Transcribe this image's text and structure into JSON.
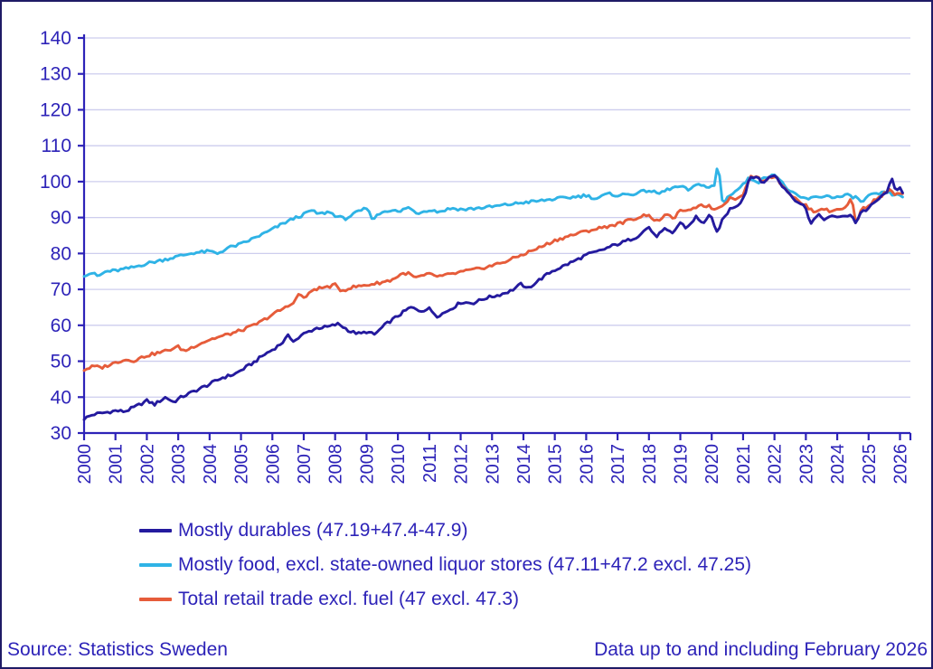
{
  "colors": {
    "text": "#2d23b8",
    "axis": "#2d23b8",
    "grid": "#cdcdee",
    "frame": "#1f1b66",
    "background": "#ffffff",
    "series_durables": "#241a9e",
    "series_food": "#2fb3e6",
    "series_retail": "#e65c3a"
  },
  "footer": {
    "source": "Source: Statistics Sweden",
    "coverage": "Data up to and including February 2026"
  },
  "chart_data": {
    "type": "line",
    "title": "",
    "xlabel": "",
    "ylabel": "",
    "x_unit": "monthly index, Jan 2000 - Feb 2026",
    "ylim": [
      30,
      140
    ],
    "y_ticks": [
      30,
      40,
      50,
      60,
      70,
      80,
      90,
      100,
      110,
      120,
      130,
      140
    ],
    "x_ticks": [
      2000,
      2001,
      2002,
      2003,
      2004,
      2005,
      2006,
      2007,
      2008,
      2009,
      2010,
      2011,
      2012,
      2013,
      2014,
      2015,
      2016,
      2017,
      2018,
      2019,
      2020,
      2021,
      2022,
      2023,
      2024,
      2025,
      2026
    ],
    "xlim": [
      2000,
      2026.33
    ],
    "grid": "horizontal",
    "legend_position": "bottom-left",
    "series": [
      {
        "name": "Mostly durables (47.19+47.4-47.9)",
        "color": "#241a9e",
        "points": [
          [
            2000.0,
            34.0
          ],
          [
            2000.3,
            35.2
          ],
          [
            2000.6,
            35.6
          ],
          [
            2001.0,
            36.2
          ],
          [
            2001.3,
            36.0
          ],
          [
            2001.7,
            37.6
          ],
          [
            2002.0,
            39.0
          ],
          [
            2002.25,
            38.0
          ],
          [
            2002.6,
            40.0
          ],
          [
            2002.85,
            38.6
          ],
          [
            2003.1,
            40.0
          ],
          [
            2003.5,
            41.6
          ],
          [
            2004.0,
            43.6
          ],
          [
            2004.4,
            45.4
          ],
          [
            2004.8,
            46.4
          ],
          [
            2005.1,
            48.0
          ],
          [
            2005.4,
            49.6
          ],
          [
            2005.7,
            51.6
          ],
          [
            2006.0,
            53.2
          ],
          [
            2006.3,
            55.0
          ],
          [
            2006.5,
            57.0
          ],
          [
            2006.7,
            55.6
          ],
          [
            2007.0,
            57.6
          ],
          [
            2007.4,
            59.2
          ],
          [
            2007.8,
            59.6
          ],
          [
            2008.1,
            60.4
          ],
          [
            2008.5,
            58.2
          ],
          [
            2008.8,
            57.6
          ],
          [
            2009.0,
            58.2
          ],
          [
            2009.25,
            57.4
          ],
          [
            2009.6,
            60.2
          ],
          [
            2010.0,
            62.6
          ],
          [
            2010.4,
            65.0
          ],
          [
            2010.7,
            64.0
          ],
          [
            2011.0,
            64.6
          ],
          [
            2011.25,
            62.6
          ],
          [
            2011.5,
            63.6
          ],
          [
            2011.8,
            65.2
          ],
          [
            2012.0,
            66.4
          ],
          [
            2012.4,
            66.2
          ],
          [
            2012.8,
            67.6
          ],
          [
            2013.2,
            68.4
          ],
          [
            2013.6,
            69.6
          ],
          [
            2013.95,
            71.6
          ],
          [
            2014.1,
            70.0
          ],
          [
            2014.5,
            72.6
          ],
          [
            2014.9,
            75.0
          ],
          [
            2015.3,
            76.6
          ],
          [
            2015.7,
            78.2
          ],
          [
            2016.0,
            79.6
          ],
          [
            2016.4,
            80.6
          ],
          [
            2016.8,
            82.0
          ],
          [
            2017.2,
            83.2
          ],
          [
            2017.6,
            84.6
          ],
          [
            2018.0,
            87.4
          ],
          [
            2018.2,
            84.6
          ],
          [
            2018.5,
            86.6
          ],
          [
            2018.75,
            85.6
          ],
          [
            2019.0,
            88.6
          ],
          [
            2019.2,
            87.0
          ],
          [
            2019.5,
            90.2
          ],
          [
            2019.7,
            88.2
          ],
          [
            2019.95,
            91.0
          ],
          [
            2020.15,
            85.6
          ],
          [
            2020.35,
            89.4
          ],
          [
            2020.6,
            92.6
          ],
          [
            2020.85,
            93.6
          ],
          [
            2021.05,
            96.0
          ],
          [
            2021.2,
            101.2
          ],
          [
            2021.4,
            101.6
          ],
          [
            2021.6,
            99.6
          ],
          [
            2021.85,
            101.2
          ],
          [
            2022.0,
            102.0
          ],
          [
            2022.2,
            99.2
          ],
          [
            2022.45,
            97.0
          ],
          [
            2022.7,
            94.6
          ],
          [
            2022.95,
            93.4
          ],
          [
            2023.15,
            88.6
          ],
          [
            2023.4,
            90.6
          ],
          [
            2023.6,
            89.6
          ],
          [
            2023.85,
            90.2
          ],
          [
            2024.1,
            90.4
          ],
          [
            2024.3,
            90.0
          ],
          [
            2024.45,
            91.2
          ],
          [
            2024.6,
            88.2
          ],
          [
            2024.75,
            91.6
          ],
          [
            2024.95,
            92.2
          ],
          [
            2025.15,
            93.8
          ],
          [
            2025.35,
            95.4
          ],
          [
            2025.55,
            96.8
          ],
          [
            2025.75,
            100.4
          ],
          [
            2025.85,
            97.6
          ],
          [
            2026.0,
            98.6
          ],
          [
            2026.08,
            97.2
          ]
        ]
      },
      {
        "name": "Mostly food, excl. state-owned liquor stores (47.11+47.2 excl. 47.25)",
        "color": "#2fb3e6",
        "points": [
          [
            2000.0,
            74.0
          ],
          [
            2000.25,
            74.6
          ],
          [
            2000.45,
            73.6
          ],
          [
            2000.7,
            75.0
          ],
          [
            2001.0,
            75.2
          ],
          [
            2001.5,
            76.0
          ],
          [
            2002.0,
            77.2
          ],
          [
            2002.5,
            78.2
          ],
          [
            2003.0,
            79.2
          ],
          [
            2003.5,
            80.2
          ],
          [
            2004.0,
            80.6
          ],
          [
            2004.25,
            80.0
          ],
          [
            2004.6,
            81.6
          ],
          [
            2005.0,
            82.6
          ],
          [
            2005.4,
            84.2
          ],
          [
            2005.8,
            85.8
          ],
          [
            2006.1,
            87.2
          ],
          [
            2006.4,
            88.6
          ],
          [
            2006.7,
            89.8
          ],
          [
            2007.0,
            90.8
          ],
          [
            2007.2,
            92.0
          ],
          [
            2007.5,
            91.0
          ],
          [
            2007.8,
            91.6
          ],
          [
            2008.05,
            90.4
          ],
          [
            2008.3,
            89.6
          ],
          [
            2008.65,
            91.2
          ],
          [
            2009.0,
            92.6
          ],
          [
            2009.2,
            89.6
          ],
          [
            2009.5,
            91.6
          ],
          [
            2009.8,
            92.2
          ],
          [
            2010.05,
            91.4
          ],
          [
            2010.3,
            93.0
          ],
          [
            2010.6,
            91.2
          ],
          [
            2011.0,
            92.2
          ],
          [
            2011.3,
            91.6
          ],
          [
            2011.7,
            92.6
          ],
          [
            2012.1,
            92.2
          ],
          [
            2012.5,
            92.6
          ],
          [
            2013.0,
            93.0
          ],
          [
            2013.5,
            93.6
          ],
          [
            2014.0,
            94.2
          ],
          [
            2014.5,
            94.6
          ],
          [
            2015.0,
            95.2
          ],
          [
            2015.5,
            95.6
          ],
          [
            2016.0,
            96.2
          ],
          [
            2016.3,
            95.2
          ],
          [
            2016.7,
            96.6
          ],
          [
            2017.0,
            96.2
          ],
          [
            2017.5,
            96.6
          ],
          [
            2018.0,
            97.6
          ],
          [
            2018.3,
            96.6
          ],
          [
            2018.7,
            98.2
          ],
          [
            2019.0,
            98.6
          ],
          [
            2019.3,
            97.6
          ],
          [
            2019.6,
            99.6
          ],
          [
            2019.9,
            98.2
          ],
          [
            2020.1,
            99.0
          ],
          [
            2020.2,
            105.6
          ],
          [
            2020.35,
            93.6
          ],
          [
            2020.55,
            96.2
          ],
          [
            2020.8,
            97.6
          ],
          [
            2021.0,
            99.2
          ],
          [
            2021.2,
            101.0
          ],
          [
            2021.5,
            100.0
          ],
          [
            2021.8,
            101.6
          ],
          [
            2022.0,
            102.2
          ],
          [
            2022.25,
            99.6
          ],
          [
            2022.5,
            97.2
          ],
          [
            2022.8,
            95.6
          ],
          [
            2023.1,
            95.2
          ],
          [
            2023.4,
            95.8
          ],
          [
            2023.7,
            96.0
          ],
          [
            2024.0,
            95.6
          ],
          [
            2024.3,
            96.2
          ],
          [
            2024.6,
            95.6
          ],
          [
            2024.8,
            94.2
          ],
          [
            2025.0,
            96.0
          ],
          [
            2025.3,
            96.6
          ],
          [
            2025.6,
            97.0
          ],
          [
            2025.85,
            96.2
          ],
          [
            2026.08,
            96.0
          ]
        ]
      },
      {
        "name": "Total retail trade excl. fuel (47 excl. 47.3)",
        "color": "#e65c3a",
        "points": [
          [
            2000.0,
            47.6
          ],
          [
            2000.3,
            48.6
          ],
          [
            2000.55,
            48.2
          ],
          [
            2001.0,
            49.6
          ],
          [
            2001.25,
            50.4
          ],
          [
            2001.6,
            50.2
          ],
          [
            2002.0,
            51.6
          ],
          [
            2002.5,
            52.6
          ],
          [
            2003.0,
            54.0
          ],
          [
            2003.2,
            52.8
          ],
          [
            2003.6,
            54.6
          ],
          [
            2004.0,
            56.0
          ],
          [
            2004.4,
            57.0
          ],
          [
            2004.8,
            58.0
          ],
          [
            2005.2,
            59.2
          ],
          [
            2005.6,
            60.8
          ],
          [
            2006.0,
            63.0
          ],
          [
            2006.3,
            64.4
          ],
          [
            2006.6,
            65.8
          ],
          [
            2006.85,
            68.6
          ],
          [
            2007.05,
            67.6
          ],
          [
            2007.3,
            70.0
          ],
          [
            2007.7,
            70.6
          ],
          [
            2008.0,
            71.2
          ],
          [
            2008.2,
            69.6
          ],
          [
            2008.55,
            70.6
          ],
          [
            2009.0,
            71.2
          ],
          [
            2009.4,
            71.8
          ],
          [
            2009.8,
            72.6
          ],
          [
            2010.1,
            74.2
          ],
          [
            2010.3,
            74.6
          ],
          [
            2010.55,
            73.2
          ],
          [
            2011.0,
            74.2
          ],
          [
            2011.3,
            73.6
          ],
          [
            2011.7,
            74.2
          ],
          [
            2012.1,
            75.0
          ],
          [
            2012.5,
            75.6
          ],
          [
            2013.0,
            76.6
          ],
          [
            2013.5,
            78.0
          ],
          [
            2014.0,
            79.8
          ],
          [
            2014.5,
            81.6
          ],
          [
            2015.0,
            83.6
          ],
          [
            2015.5,
            85.0
          ],
          [
            2016.0,
            86.2
          ],
          [
            2016.5,
            87.2
          ],
          [
            2017.0,
            88.2
          ],
          [
            2017.5,
            89.6
          ],
          [
            2018.0,
            91.0
          ],
          [
            2018.2,
            88.6
          ],
          [
            2018.5,
            90.6
          ],
          [
            2018.8,
            90.0
          ],
          [
            2019.05,
            92.2
          ],
          [
            2019.3,
            91.6
          ],
          [
            2019.6,
            93.6
          ],
          [
            2019.9,
            93.2
          ],
          [
            2020.1,
            92.2
          ],
          [
            2020.35,
            93.6
          ],
          [
            2020.6,
            95.6
          ],
          [
            2020.85,
            95.2
          ],
          [
            2021.05,
            97.2
          ],
          [
            2021.2,
            101.0
          ],
          [
            2021.4,
            101.6
          ],
          [
            2021.6,
            100.2
          ],
          [
            2021.85,
            101.2
          ],
          [
            2022.0,
            101.6
          ],
          [
            2022.2,
            99.6
          ],
          [
            2022.5,
            96.6
          ],
          [
            2022.8,
            94.2
          ],
          [
            2023.05,
            93.0
          ],
          [
            2023.25,
            91.6
          ],
          [
            2023.5,
            92.6
          ],
          [
            2023.8,
            91.6
          ],
          [
            2024.05,
            92.6
          ],
          [
            2024.3,
            92.6
          ],
          [
            2024.45,
            96.0
          ],
          [
            2024.6,
            88.2
          ],
          [
            2024.75,
            92.0
          ],
          [
            2024.95,
            93.2
          ],
          [
            2025.15,
            94.6
          ],
          [
            2025.4,
            96.0
          ],
          [
            2025.65,
            97.6
          ],
          [
            2025.85,
            96.6
          ],
          [
            2026.08,
            96.4
          ]
        ]
      }
    ]
  }
}
